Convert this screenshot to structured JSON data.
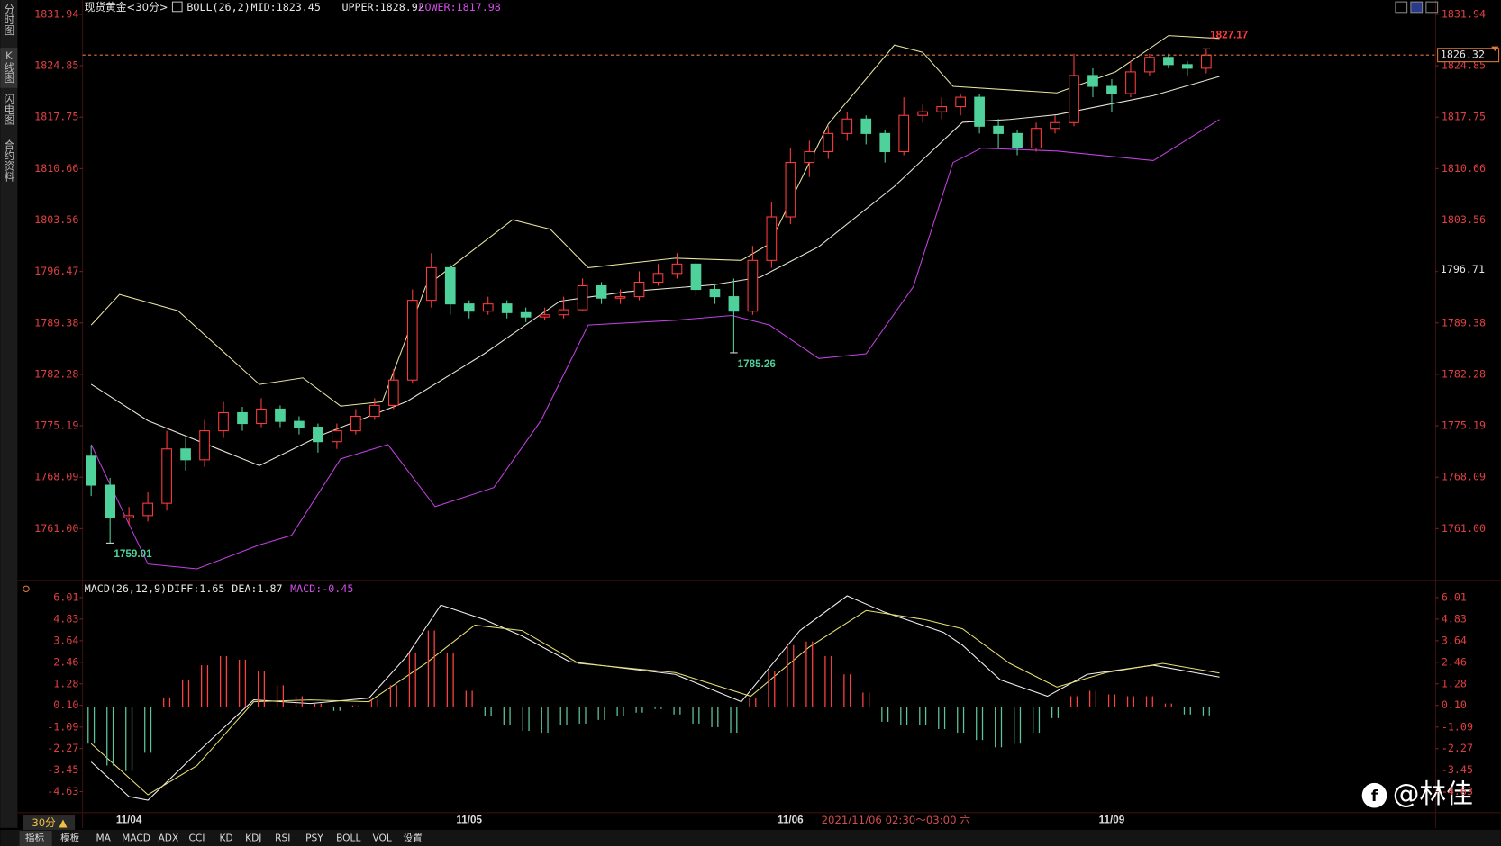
{
  "sidebar_tabs": [
    "分时图",
    "K线图",
    "闪电图",
    "合约资料"
  ],
  "toolbar": {
    "period": "30分 ▲",
    "tabs": [
      "指标",
      "模板",
      "MA",
      "MACD",
      "ADX",
      "CCI",
      "KD",
      "KDJ",
      "RSI",
      "PSY",
      "BOLL",
      "VOL",
      "设置"
    ]
  },
  "status": "2021/11/06 02:30～03:00 六",
  "watermark": "@林佳",
  "chart_data": [
    {
      "type": "candlestick",
      "title": "现货黄金<30分>",
      "indicator": "BOLL(26,2)",
      "indicator_values": [
        {
          "label": "MID:1823.45",
          "color": "#e6e6e6"
        },
        {
          "label": "UPPER:1828.92",
          "color": "#e6e6e6"
        },
        {
          "label": "LOWER:1817.98",
          "color": "#d24ee6"
        }
      ],
      "categories": [
        null,
        null,
        "11/04",
        null,
        null,
        null,
        null,
        null,
        null,
        null,
        null,
        null,
        null,
        null,
        null,
        null,
        null,
        null,
        null,
        null,
        "11/05",
        null,
        null,
        null,
        null,
        null,
        null,
        null,
        null,
        null,
        null,
        null,
        null,
        null,
        null,
        null,
        null,
        "11/06",
        null,
        null,
        null,
        null,
        null,
        null,
        null,
        null,
        null,
        null,
        null,
        null,
        null,
        null,
        null,
        null,
        "11/09",
        null,
        null,
        null,
        null,
        null
      ],
      "ohlc": [
        [
          1771.0,
          1772.5,
          1765.5,
          1767.0
        ],
        [
          1767.0,
          1768.0,
          1759.01,
          1762.5
        ],
        [
          1762.5,
          1764.0,
          1761.5,
          1762.8
        ],
        [
          1762.8,
          1766.0,
          1762.0,
          1764.5
        ],
        [
          1764.5,
          1774.5,
          1763.5,
          1772.0
        ],
        [
          1772.0,
          1773.5,
          1769.0,
          1770.5
        ],
        [
          1770.5,
          1776.0,
          1769.5,
          1774.5
        ],
        [
          1774.5,
          1778.5,
          1773.5,
          1777.0
        ],
        [
          1777.0,
          1777.8,
          1774.5,
          1775.5
        ],
        [
          1775.5,
          1779.0,
          1775.0,
          1777.5
        ],
        [
          1777.5,
          1778.0,
          1775.0,
          1775.8
        ],
        [
          1775.8,
          1776.5,
          1774.0,
          1775.0
        ],
        [
          1775.0,
          1775.5,
          1771.5,
          1773.0
        ],
        [
          1773.0,
          1775.5,
          1772.0,
          1774.5
        ],
        [
          1774.5,
          1777.5,
          1774.0,
          1776.5
        ],
        [
          1776.5,
          1779.0,
          1776.0,
          1778.0
        ],
        [
          1778.0,
          1783.0,
          1777.5,
          1781.5
        ],
        [
          1781.5,
          1794.0,
          1781.0,
          1792.5
        ],
        [
          1792.5,
          1799.0,
          1791.5,
          1797.0
        ],
        [
          1797.0,
          1797.5,
          1790.5,
          1792.0
        ],
        [
          1792.0,
          1792.5,
          1790.0,
          1791.0
        ],
        [
          1791.0,
          1793.0,
          1790.5,
          1792.0
        ],
        [
          1792.0,
          1792.5,
          1790.0,
          1790.8
        ],
        [
          1790.8,
          1791.5,
          1789.5,
          1790.2
        ],
        [
          1790.2,
          1791.5,
          1789.8,
          1790.5
        ],
        [
          1790.5,
          1793.0,
          1790.0,
          1791.2
        ],
        [
          1791.2,
          1795.5,
          1791.0,
          1794.5
        ],
        [
          1794.5,
          1795.0,
          1792.0,
          1792.8
        ],
        [
          1792.8,
          1794.0,
          1792.0,
          1793.0
        ],
        [
          1793.0,
          1796.5,
          1792.5,
          1795.0
        ],
        [
          1795.0,
          1797.5,
          1794.5,
          1796.2
        ],
        [
          1796.2,
          1799.0,
          1795.5,
          1797.5
        ],
        [
          1797.5,
          1797.8,
          1793.0,
          1794.0
        ],
        [
          1794.0,
          1794.8,
          1792.0,
          1793.0
        ],
        [
          1793.0,
          1795.5,
          1785.26,
          1791.0
        ],
        [
          1791.0,
          1800.0,
          1790.5,
          1798.0
        ],
        [
          1798.0,
          1806.0,
          1797.0,
          1804.0
        ],
        [
          1804.0,
          1813.5,
          1803.0,
          1811.5
        ],
        [
          1811.5,
          1814.5,
          1809.5,
          1813.0
        ],
        [
          1813.0,
          1816.5,
          1812.0,
          1815.5
        ],
        [
          1815.5,
          1818.5,
          1814.5,
          1817.5
        ],
        [
          1817.5,
          1818.0,
          1814.0,
          1815.5
        ],
        [
          1815.5,
          1816.0,
          1811.5,
          1813.0
        ],
        [
          1813.0,
          1820.5,
          1812.5,
          1818.0
        ],
        [
          1818.0,
          1819.5,
          1817.0,
          1818.5
        ],
        [
          1818.5,
          1820.5,
          1817.5,
          1819.2
        ],
        [
          1819.2,
          1821.0,
          1818.0,
          1820.5
        ],
        [
          1820.5,
          1821.0,
          1815.5,
          1816.5
        ],
        [
          1816.5,
          1817.5,
          1813.5,
          1815.5
        ],
        [
          1815.5,
          1816.0,
          1812.5,
          1813.5
        ],
        [
          1813.5,
          1817.0,
          1813.0,
          1816.2
        ],
        [
          1816.2,
          1818.0,
          1815.5,
          1817.0
        ],
        [
          1817.0,
          1826.5,
          1816.5,
          1823.5
        ],
        [
          1823.5,
          1824.5,
          1820.5,
          1822.0
        ],
        [
          1822.0,
          1823.0,
          1818.5,
          1821.0
        ],
        [
          1821.0,
          1825.5,
          1820.5,
          1824.0
        ],
        [
          1824.0,
          1826.5,
          1823.5,
          1826.0
        ],
        [
          1826.0,
          1826.5,
          1824.5,
          1825.0
        ],
        [
          1825.0,
          1825.5,
          1823.5,
          1824.5
        ],
        [
          1824.5,
          1827.17,
          1823.8,
          1826.32
        ]
      ],
      "up_color": "#ff3c3c",
      "down_color": "#4fd19b",
      "last_line_color": "#e07a3c",
      "series": [
        {
          "color": "#e8e4a0",
          "x": [
            0,
            1.5,
            4.6,
            8.9,
            11.2,
            13.2,
            15.4,
            17.7,
            22.3,
            24.3,
            26.3,
            30.9,
            34.4,
            35.9,
            39,
            42.5,
            44,
            45.6,
            51.1,
            54.2,
            57,
            59.7
          ],
          "values": [
            1789.09,
            1793.3,
            1791.06,
            1780.9,
            1781.8,
            1777.9,
            1778.5,
            1794.4,
            1803.6,
            1802.3,
            1797.0,
            1798.3,
            1798.0,
            1800.3,
            1816.8,
            1827.7,
            1826.7,
            1822.0,
            1821.1,
            1824.0,
            1829.0,
            1828.6
          ]
        },
        {
          "color": "#e6e6d6",
          "x": [
            0,
            3.0,
            8.9,
            12.2,
            16.7,
            20.8,
            24.8,
            28.4,
            32.9,
            35.4,
            38.5,
            42.5,
            46.1,
            48.6,
            51.1,
            56.2,
            59.7
          ],
          "values": [
            1780.91,
            1775.9,
            1769.7,
            1773.92,
            1778.54,
            1785.13,
            1792.38,
            1793.7,
            1794.62,
            1795.68,
            1799.9,
            1808.21,
            1817.04,
            1817.44,
            1818.09,
            1820.73,
            1823.37
          ]
        },
        {
          "color": "#c040e0",
          "x": [
            0,
            3.0,
            5.6,
            8.9,
            10.6,
            13.2,
            15.7,
            18.2,
            21.3,
            23.8,
            26.3,
            30.9,
            33.9,
            35.9,
            38.5,
            41.0,
            43.5,
            45.6,
            47.1,
            51.1,
            56.2,
            59.7
          ],
          "values": [
            1772.6,
            1756.12,
            1755.46,
            1758.76,
            1760.08,
            1770.63,
            1772.6,
            1764.03,
            1766.67,
            1775.9,
            1789.09,
            1789.74,
            1790.4,
            1789.09,
            1784.47,
            1785.13,
            1794.36,
            1811.5,
            1813.48,
            1813.08,
            1811.77,
            1817.44
          ]
        }
      ],
      "crosshair_price": 1796.71,
      "ylim": [
        1754.14,
        1833.92
      ],
      "yticks": [
        1831.94,
        1824.85,
        1817.75,
        1810.66,
        1803.56,
        1796.47,
        1789.38,
        1782.28,
        1775.19,
        1768.09,
        {
          "value": 1761,
          "label": "1761.00"
        }
      ]
    },
    {
      "type": "macd",
      "title": "MACD(26,12,9)",
      "indicator_values": [
        {
          "label": "DIFF:1.65",
          "color": "#e6e6e6"
        },
        {
          "label": "DEA:1.87",
          "color": "#e6e6e6"
        },
        {
          "label": "MACD:-0.45",
          "color": "#d24ee6"
        }
      ],
      "values": [
        -2.0,
        -3.2,
        -3.5,
        -2.5,
        0.5,
        1.5,
        2.3,
        2.8,
        2.6,
        2.0,
        1.2,
        0.6,
        0.2,
        -0.2,
        0.1,
        0.4,
        1.2,
        3.0,
        4.2,
        3.0,
        0.9,
        -0.5,
        -1.0,
        -1.3,
        -1.4,
        -1.0,
        -0.9,
        -0.7,
        -0.5,
        -0.3,
        -0.1,
        -0.4,
        -0.9,
        -1.1,
        -1.4,
        0.5,
        2.0,
        3.4,
        3.6,
        2.8,
        1.8,
        0.8,
        -0.8,
        -1.0,
        -1.0,
        -1.2,
        -1.4,
        -1.8,
        -2.2,
        -2.0,
        -1.4,
        -0.6,
        0.6,
        0.9,
        0.7,
        0.6,
        0.6,
        0.2,
        -0.4,
        -0.45
      ],
      "up_color": "#ff4040",
      "down_color": "#5ec49a",
      "series": [
        {
          "color": "#f0f0f0",
          "x": [
            0,
            2.0,
            3.0,
            5.6,
            8.6,
            11.6,
            14.7,
            16.7,
            18.5,
            20.8,
            22.8,
            25.3,
            30.9,
            34.4,
            37.5,
            40.0,
            42.0,
            45.1,
            46.1,
            48.1,
            50.6,
            52.7,
            56.2,
            59.7
          ],
          "values": [
            -3.0,
            -4.9,
            -5.1,
            -2.5,
            0.4,
            0.2,
            0.5,
            2.8,
            5.6,
            4.8,
            3.9,
            2.5,
            1.8,
            0.3,
            4.2,
            6.1,
            5.2,
            4.1,
            3.4,
            1.5,
            0.6,
            1.8,
            2.3,
            1.65
          ]
        },
        {
          "color": "#e8e070",
          "x": [
            0,
            3.0,
            5.6,
            8.6,
            11.6,
            14.7,
            17.7,
            20.3,
            22.8,
            25.8,
            30.9,
            34.9,
            38.0,
            41.0,
            44.1,
            46.1,
            48.6,
            51.1,
            53.7,
            56.7,
            59.7
          ],
          "values": [
            -2.0,
            -4.8,
            -3.2,
            0.3,
            0.4,
            0.3,
            2.4,
            4.5,
            4.2,
            2.4,
            1.9,
            0.6,
            3.3,
            5.3,
            4.8,
            4.3,
            2.4,
            1.1,
            1.9,
            2.4,
            1.87
          ]
        }
      ],
      "ylim": [
        -5.78,
        6.17
      ],
      "yticks": [
        6.01,
        4.83,
        3.64,
        2.46,
        1.28,
        {
          "value": 0.1,
          "label": "0.10"
        },
        -1.09,
        -2.27,
        -3.45,
        -4.63
      ]
    }
  ]
}
